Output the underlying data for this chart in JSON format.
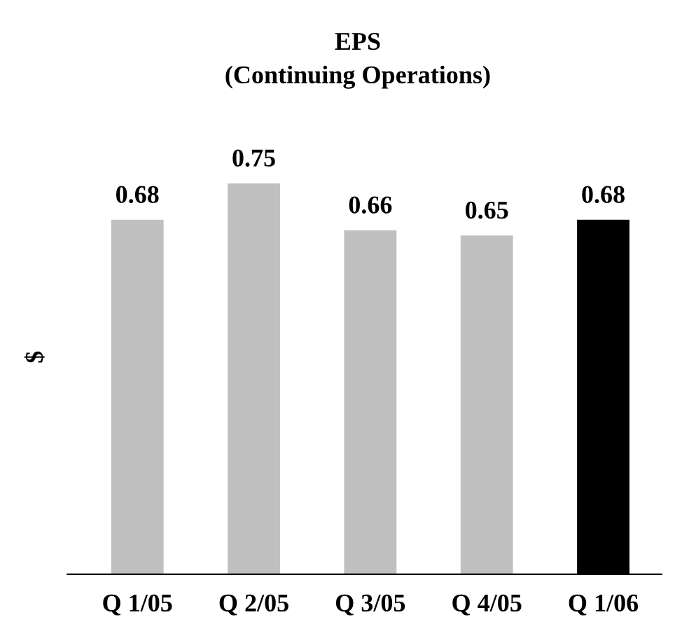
{
  "chart_data": {
    "type": "bar",
    "title": "EPS\n(Continuing Operations)",
    "ylabel": "$",
    "categories": [
      "Q 1/05",
      "Q 2/05",
      "Q 3/05",
      "Q 4/05",
      "Q 1/06"
    ],
    "values": [
      0.68,
      0.75,
      0.66,
      0.65,
      0.68
    ],
    "colors": [
      "#c0c0c0",
      "#c0c0c0",
      "#c0c0c0",
      "#c0c0c0",
      "#000000"
    ],
    "data_labels": true,
    "grid": false,
    "legend": false
  }
}
